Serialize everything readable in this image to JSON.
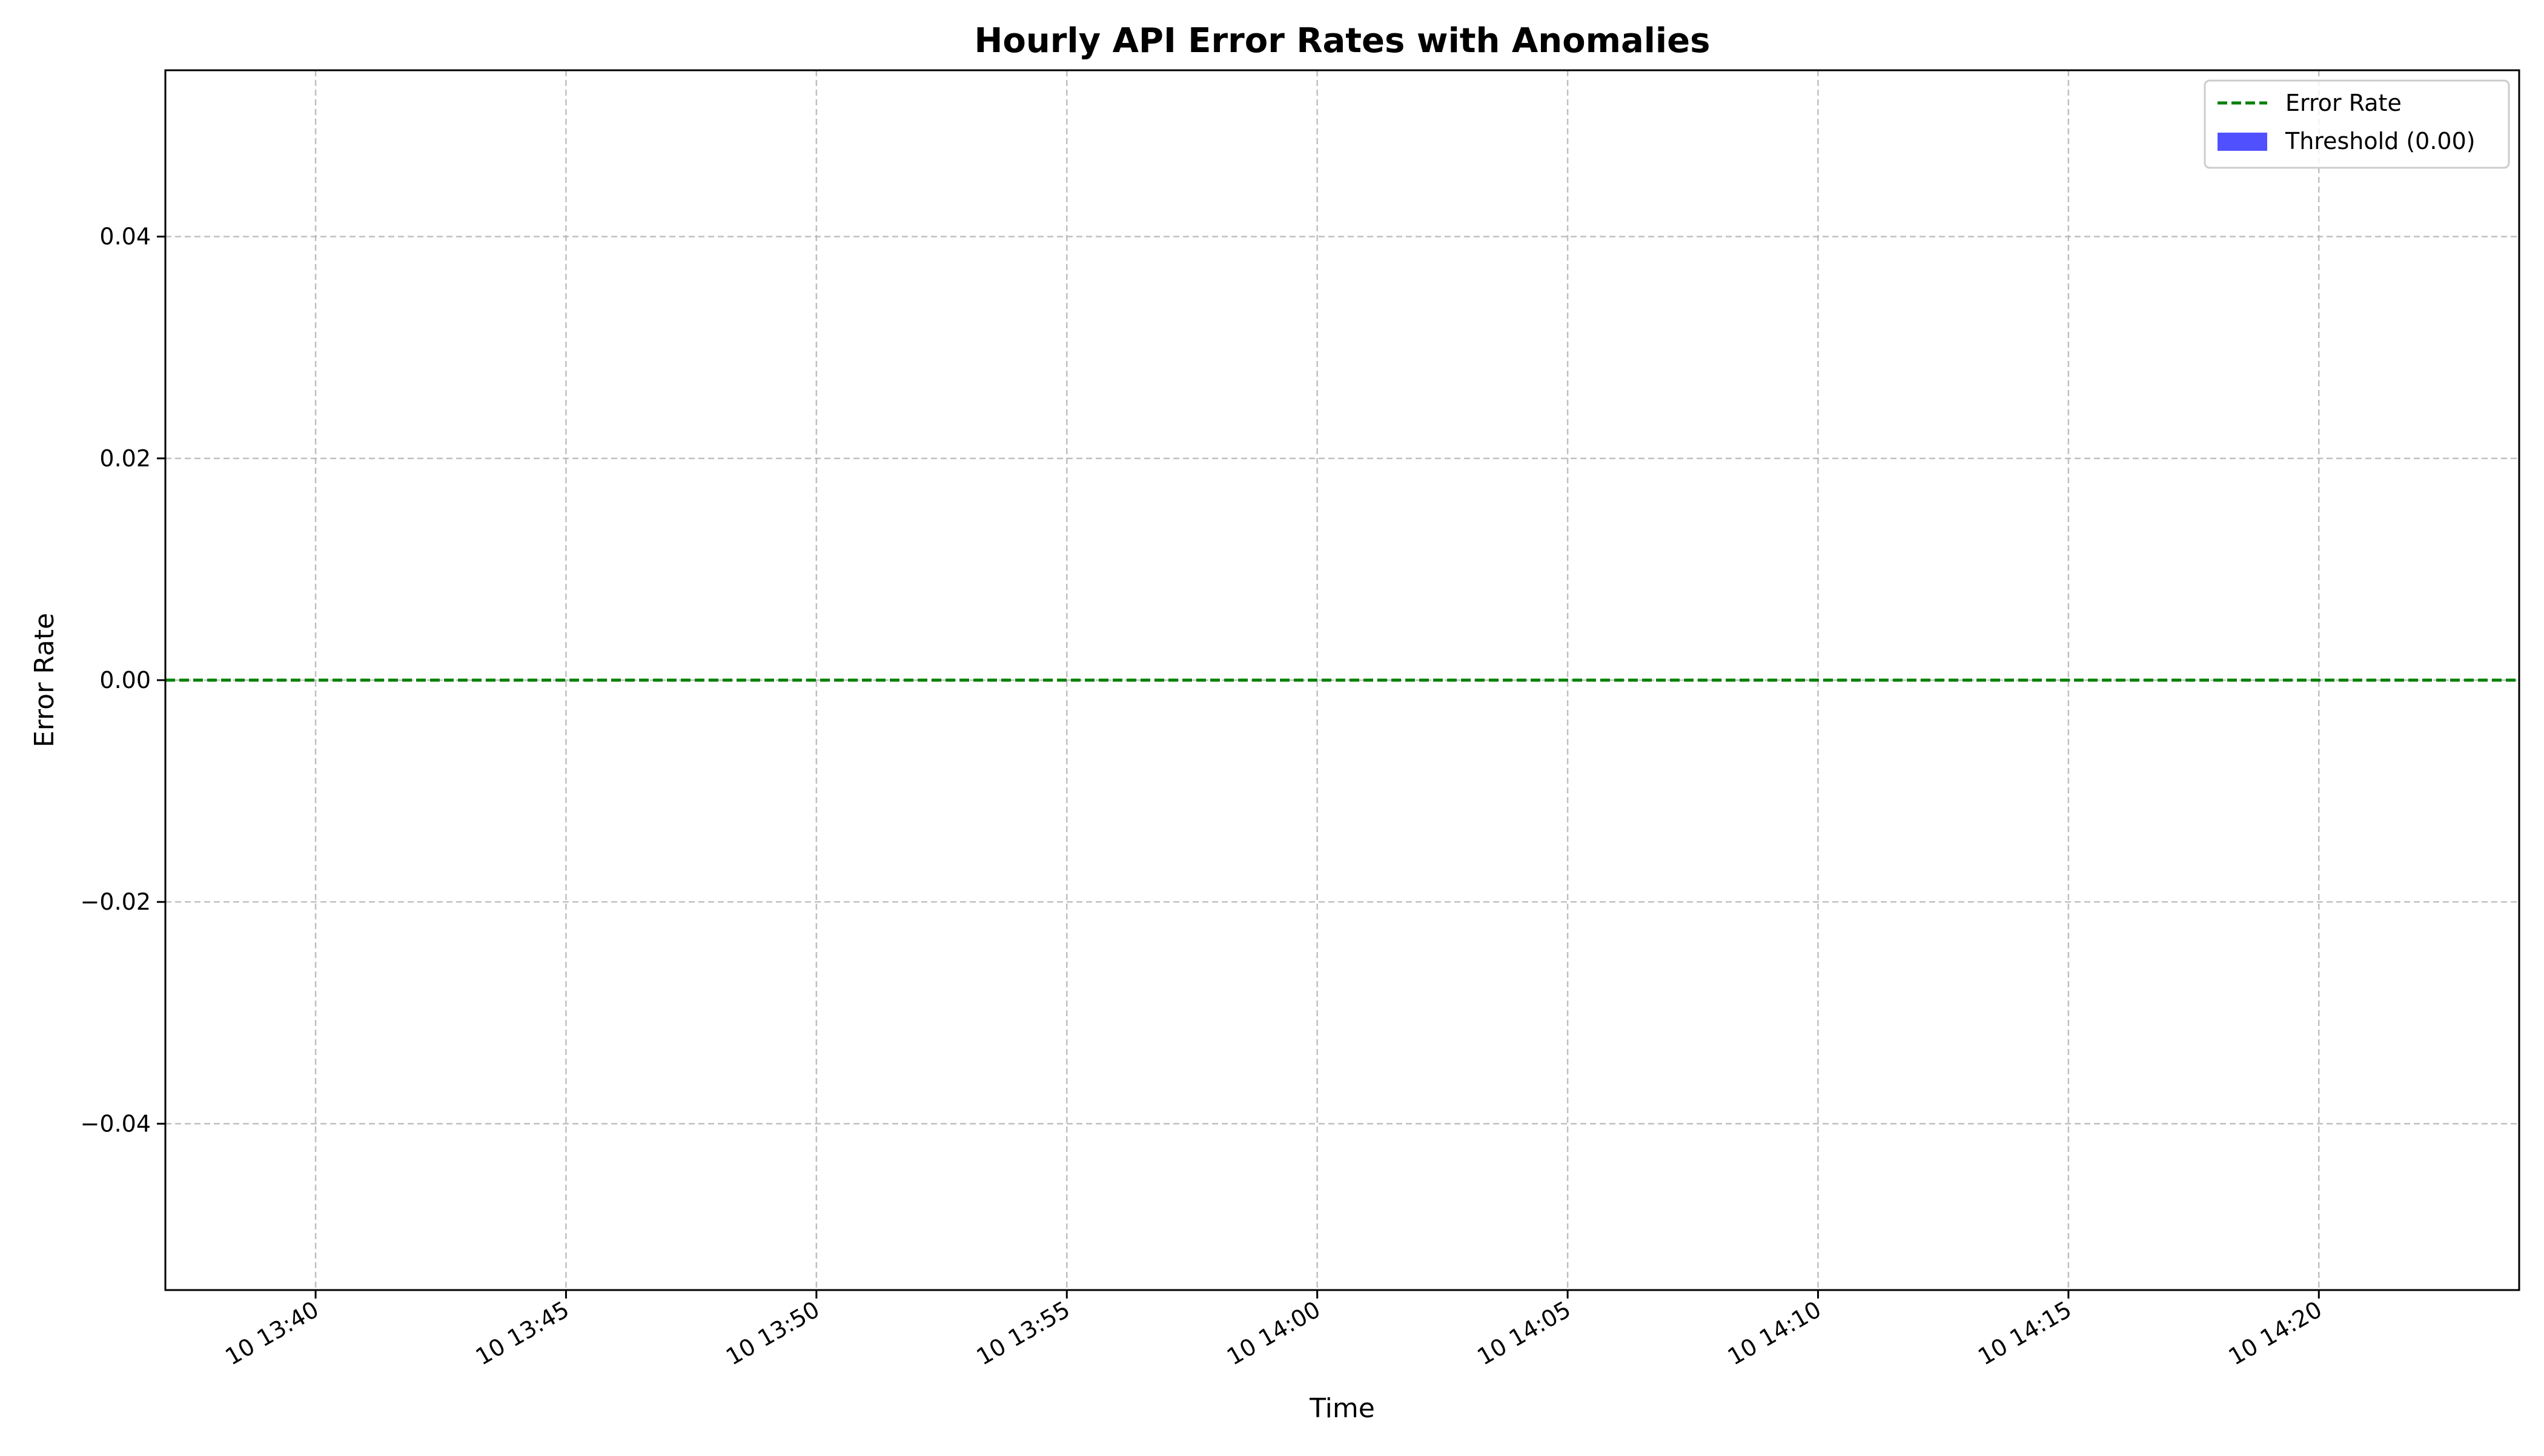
{
  "chart_data": {
    "type": "line",
    "title": "Hourly API Error Rates with Anomalies",
    "xlabel": "Time",
    "ylabel": "Error Rate",
    "x_axis_kind": "datetime",
    "x_ticks": [
      "10 13:40",
      "10 13:45",
      "10 13:50",
      "10 13:55",
      "10 14:00",
      "10 14:05",
      "10 14:10",
      "10 14:15",
      "10 14:20"
    ],
    "y_ticks": [
      "−0.04",
      "−0.02",
      "0.00",
      "0.02",
      "0.04"
    ],
    "y_tick_values": [
      -0.04,
      -0.02,
      0.0,
      0.02,
      0.04
    ],
    "ylim": [
      -0.055,
      0.055
    ],
    "grid": true,
    "legend_position": "top-right",
    "series": [
      {
        "name": "Error Rate",
        "style": "dashed-line",
        "color": "#008000",
        "points": [
          {
            "x": "10 13:37",
            "y": 0.0
          },
          {
            "x": "10 14:24",
            "y": 0.0
          }
        ]
      }
    ],
    "threshold": {
      "name": "Threshold (0.00)",
      "value": 0.0,
      "style": "filled-patch",
      "color": "#5050ff"
    }
  }
}
